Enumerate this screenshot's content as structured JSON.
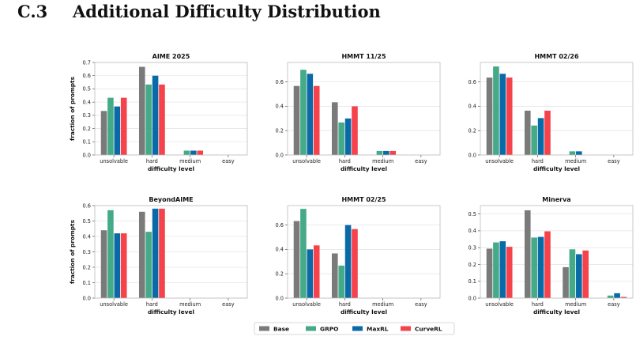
{
  "section": {
    "number": "C.3",
    "title": "Additional Difficulty Distribution"
  },
  "colors": {
    "Base": "#7a7a7a",
    "GRPO": "#44aa88",
    "MaxRL": "#0a6aa8",
    "CurveRL": "#f5424b"
  },
  "chart_data": [
    {
      "type": "bar",
      "title": "AIME 2025",
      "categories": [
        "unsolvable",
        "hard",
        "medium",
        "easy"
      ],
      "xlabel": "difficulty level",
      "ylabel": "fraction of prompts",
      "ylim": [
        0,
        0.7
      ],
      "yticks": [
        "0.0",
        "0.1",
        "0.2",
        "0.3",
        "0.4",
        "0.5",
        "0.6",
        "0.7"
      ],
      "series": [
        {
          "name": "Base",
          "values": [
            0.333,
            0.667,
            0,
            0
          ]
        },
        {
          "name": "GRPO",
          "values": [
            0.433,
            0.533,
            0.033,
            0
          ]
        },
        {
          "name": "MaxRL",
          "values": [
            0.367,
            0.6,
            0.033,
            0
          ]
        },
        {
          "name": "CurveRL",
          "values": [
            0.433,
            0.533,
            0.033,
            0
          ]
        }
      ]
    },
    {
      "type": "bar",
      "title": "HMMT 11/25",
      "categories": [
        "unsolvable",
        "hard",
        "medium",
        "easy"
      ],
      "xlabel": "difficulty level",
      "ylabel": "",
      "ylim": [
        0,
        0.76
      ],
      "yticks": [
        "0.0",
        "0.2",
        "0.4",
        "0.6"
      ],
      "series": [
        {
          "name": "Base",
          "values": [
            0.567,
            0.433,
            0,
            0
          ]
        },
        {
          "name": "GRPO",
          "values": [
            0.7,
            0.267,
            0.033,
            0
          ]
        },
        {
          "name": "MaxRL",
          "values": [
            0.667,
            0.3,
            0.033,
            0
          ]
        },
        {
          "name": "CurveRL",
          "values": [
            0.567,
            0.4,
            0.033,
            0
          ]
        }
      ]
    },
    {
      "type": "bar",
      "title": "HMMT 02/26",
      "categories": [
        "unsolvable",
        "hard",
        "medium",
        "easy"
      ],
      "xlabel": "difficulty level",
      "ylabel": "",
      "ylim": [
        0,
        0.76
      ],
      "yticks": [
        "0.0",
        "0.2",
        "0.4",
        "0.6"
      ],
      "series": [
        {
          "name": "Base",
          "values": [
            0.636,
            0.364,
            0,
            0
          ]
        },
        {
          "name": "GRPO",
          "values": [
            0.727,
            0.242,
            0.03,
            0
          ]
        },
        {
          "name": "MaxRL",
          "values": [
            0.667,
            0.303,
            0.03,
            0
          ]
        },
        {
          "name": "CurveRL",
          "values": [
            0.636,
            0.364,
            0,
            0
          ]
        }
      ]
    },
    {
      "type": "bar",
      "title": "BeyondAIME",
      "categories": [
        "unsolvable",
        "hard",
        "medium",
        "easy"
      ],
      "xlabel": "difficulty level",
      "ylabel": "fraction of prompts",
      "ylim": [
        0,
        0.6
      ],
      "yticks": [
        "0.0",
        "0.1",
        "0.2",
        "0.3",
        "0.4",
        "0.5",
        "0.6"
      ],
      "series": [
        {
          "name": "Base",
          "values": [
            0.44,
            0.56,
            0,
            0
          ]
        },
        {
          "name": "GRPO",
          "values": [
            0.57,
            0.43,
            0,
            0
          ]
        },
        {
          "name": "MaxRL",
          "values": [
            0.42,
            0.58,
            0,
            0
          ]
        },
        {
          "name": "CurveRL",
          "values": [
            0.42,
            0.58,
            0,
            0
          ]
        }
      ]
    },
    {
      "type": "bar",
      "title": "HMMT 02/25",
      "categories": [
        "unsolvable",
        "hard",
        "medium",
        "easy"
      ],
      "xlabel": "difficulty level",
      "ylabel": "",
      "ylim": [
        0,
        0.76
      ],
      "yticks": [
        "0.0",
        "0.2",
        "0.4",
        "0.6"
      ],
      "series": [
        {
          "name": "Base",
          "values": [
            0.633,
            0.367,
            0,
            0
          ]
        },
        {
          "name": "GRPO",
          "values": [
            0.733,
            0.267,
            0,
            0
          ]
        },
        {
          "name": "MaxRL",
          "values": [
            0.4,
            0.6,
            0,
            0
          ]
        },
        {
          "name": "CurveRL",
          "values": [
            0.433,
            0.567,
            0,
            0
          ]
        }
      ]
    },
    {
      "type": "bar",
      "title": "Minerva",
      "categories": [
        "unsolvable",
        "hard",
        "medium",
        "easy"
      ],
      "xlabel": "difficulty level",
      "ylabel": "",
      "ylim": [
        0,
        0.55
      ],
      "yticks": [
        "0.0",
        "0.1",
        "0.2",
        "0.3",
        "0.4",
        "0.5"
      ],
      "series": [
        {
          "name": "Base",
          "values": [
            0.294,
            0.522,
            0.184,
            0
          ]
        },
        {
          "name": "GRPO",
          "values": [
            0.331,
            0.36,
            0.29,
            0.015
          ]
        },
        {
          "name": "MaxRL",
          "values": [
            0.338,
            0.364,
            0.261,
            0.029
          ]
        },
        {
          "name": "CurveRL",
          "values": [
            0.305,
            0.397,
            0.283,
            0.007
          ]
        }
      ]
    }
  ],
  "legend": [
    "Base",
    "GRPO",
    "MaxRL",
    "CurveRL"
  ]
}
